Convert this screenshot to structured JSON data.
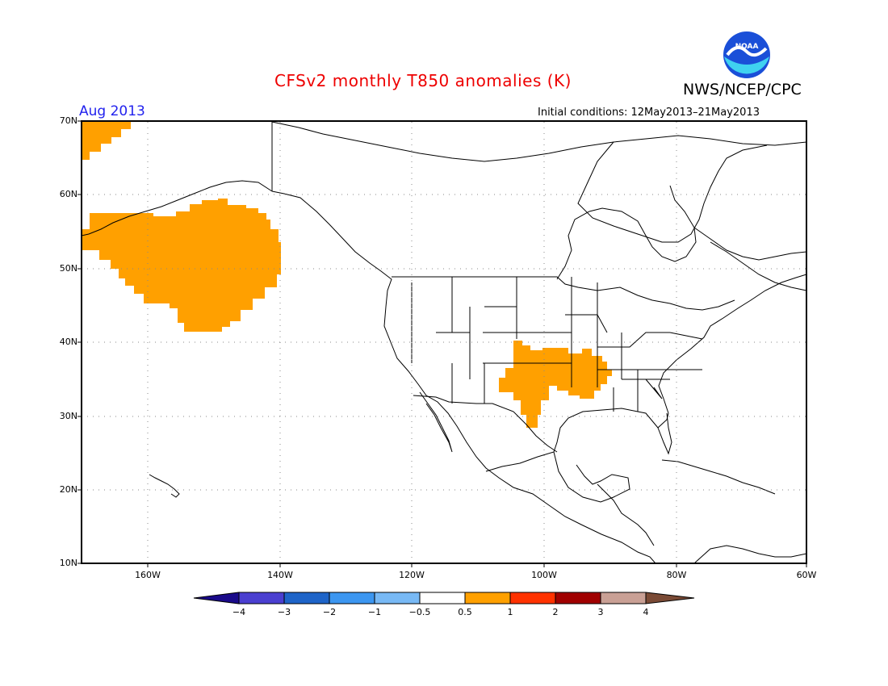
{
  "title": "CFSv2 monthly T850 anomalies (K)",
  "organization": "NWS/NCEP/CPC",
  "logo_text": "NOAA",
  "period": "Aug 2013",
  "initial_conditions": "Initial conditions: 12May2013–21May2013",
  "lat_labels": [
    "70N",
    "60N",
    "50N",
    "40N",
    "30N",
    "20N",
    "10N"
  ],
  "lon_labels": [
    "160W",
    "140W",
    "120W",
    "100W",
    "80W",
    "60W"
  ],
  "colorbar": {
    "labels": [
      "−4",
      "−3",
      "−2",
      "−1",
      "−0.5",
      "0.5",
      "1",
      "2",
      "3",
      "4"
    ],
    "colors": [
      "#1a0a8a",
      "#4a3fd0",
      "#1e64c8",
      "#3c96f0",
      "#78b9f5",
      "#ffffff",
      "#ffa000",
      "#ff3200",
      "#a00000",
      "#c9a095",
      "#7a4a35"
    ]
  },
  "anomaly_regions": [
    {
      "name": "gulf-of-alaska",
      "category": "0.5 to 1",
      "color": "#ffa000"
    },
    {
      "name": "northwest-arctic",
      "category": "0.5 to 1",
      "color": "#ffa000"
    },
    {
      "name": "southern-plains",
      "category": "0.5 to 1",
      "color": "#ffa000"
    }
  ]
}
